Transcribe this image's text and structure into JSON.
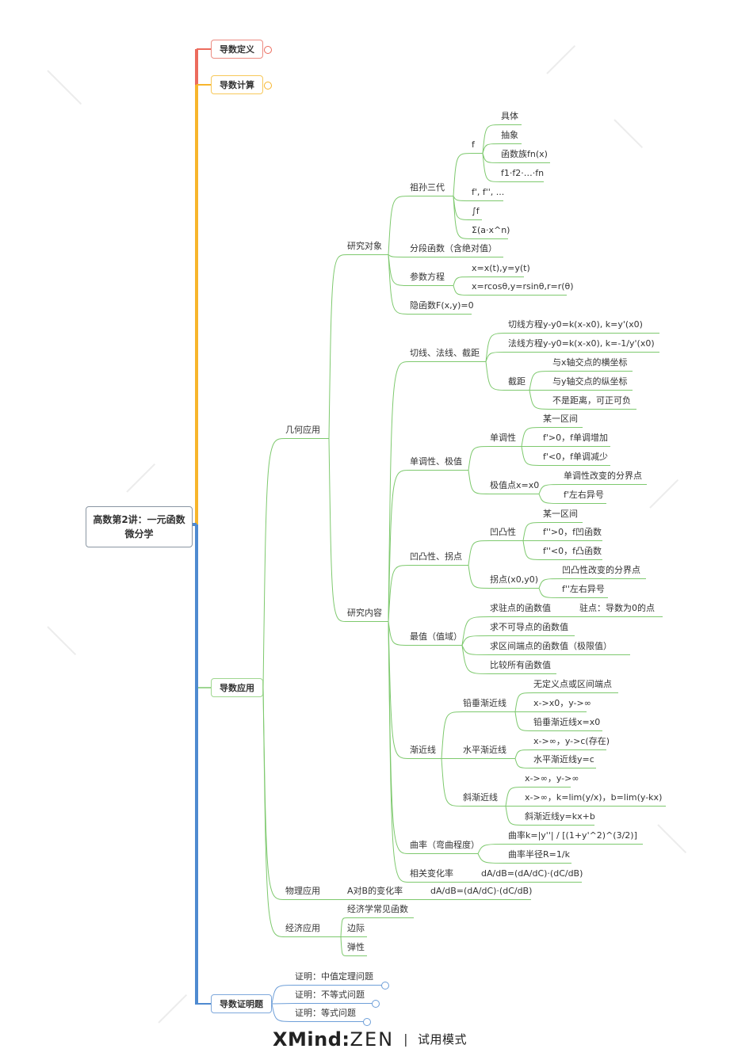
{
  "root": "高数第2讲：一元函数微分学",
  "branches": [
    {
      "label": "导数定义",
      "color": "#ec6b5d"
    },
    {
      "label": "导数计算",
      "color": "#f7b52c"
    },
    {
      "label": "导数应用",
      "color": "#7ec96e"
    },
    {
      "label": "导数证明题",
      "color": "#4f8ad0"
    }
  ],
  "topics": [
    "几何应用",
    "物理应用",
    "A对B的变化率",
    "dA/dB=(dA/dC)·(dC/dB)",
    "经济应用",
    "经济学常见函数",
    "边际",
    "弹性",
    "研究对象",
    "研究内容",
    "祖孙三代",
    "分段函数（含绝对值）",
    "参数方程",
    "隐函数F(x,y)=0",
    "f",
    "f', f'', ...",
    "∫f",
    "Σ(a·x^n)",
    "具体",
    "抽象",
    "函数族fn(x)",
    "f1·f2·…·fn",
    "x=x(t),y=y(t)",
    "x=rcosθ,y=rsinθ,r=r(θ)",
    "切线、法线、截距",
    "单调性、极值",
    "凹凸性、拐点",
    "最值（值域）",
    "渐近线",
    "曲率（弯曲程度）",
    "相关变化率",
    "dA/dB=(dA/dC)·(dC/dB)",
    "切线方程y-y0=k(x-x0), k=y'(x0)",
    "法线方程y-y0=k(x-x0), k=-1/y'(x0)",
    "截距",
    "与x轴交点的横坐标",
    "与y轴交点的纵坐标",
    "不是距离，可正可负",
    "单调性",
    "极值点x=x0",
    "某一区间",
    "f'>0，f单调增加",
    "f'<0，f单调减少",
    "单调性改变的分界点",
    "f'左右异号",
    "凹凸性",
    "拐点(x0,y0)",
    "某一区间",
    "f''>0，f凹函数",
    "f''<0，f凸函数",
    "凹凸性改变的分界点",
    "f''左右异号",
    "求驻点的函数值",
    "驻点：导数为0的点",
    "求不可导点的函数值",
    "求区间端点的函数值（极限值）",
    "比较所有函数值",
    "铅垂渐近线",
    "水平渐近线",
    "斜渐近线",
    "无定义点或区间端点",
    "x->x0，y->∞",
    "铅垂渐近线x=x0",
    "x->∞，y->c(存在)",
    "水平渐近线y=c",
    "x->∞，y->∞",
    "x->∞，k=lim(y/x)，b=lim(y-kx)",
    "斜渐近线y=kx+b",
    "曲率k=|y''| / [(1+y'^2)^(3/2)]",
    "曲率半径R=1/k",
    "证明：中值定理问题",
    "证明：不等式问题",
    "证明：等式问题"
  ],
  "footer": {
    "brand": "XMind",
    "product": "ZEN",
    "separator": "|",
    "mode": "试用模式"
  }
}
